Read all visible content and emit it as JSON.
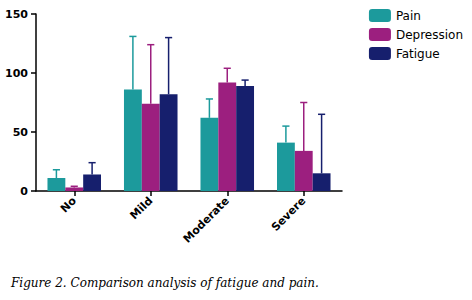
{
  "chart_data": {
    "type": "bar",
    "title": "Figure 2. Comparison analysis of fatigue and pain.",
    "categories": [
      "No",
      "Mild",
      "Moderate",
      "Severe"
    ],
    "series": [
      {
        "name": "Pain",
        "color": "#1c9a9c",
        "values": [
          11,
          86,
          62,
          41
        ],
        "errors": [
          7,
          45,
          16,
          14
        ]
      },
      {
        "name": "Depression",
        "color": "#9c1f7f",
        "values": [
          3,
          74,
          92,
          34
        ],
        "errors": [
          1,
          50,
          12,
          41
        ]
      },
      {
        "name": "Fatigue",
        "color": "#161f6d",
        "values": [
          14,
          82,
          89,
          15
        ],
        "errors": [
          10,
          48,
          5,
          50
        ]
      }
    ],
    "ylim": [
      0,
      150
    ],
    "yticks": [
      0,
      50,
      100,
      150
    ],
    "grid": false,
    "legend": "top-right"
  }
}
